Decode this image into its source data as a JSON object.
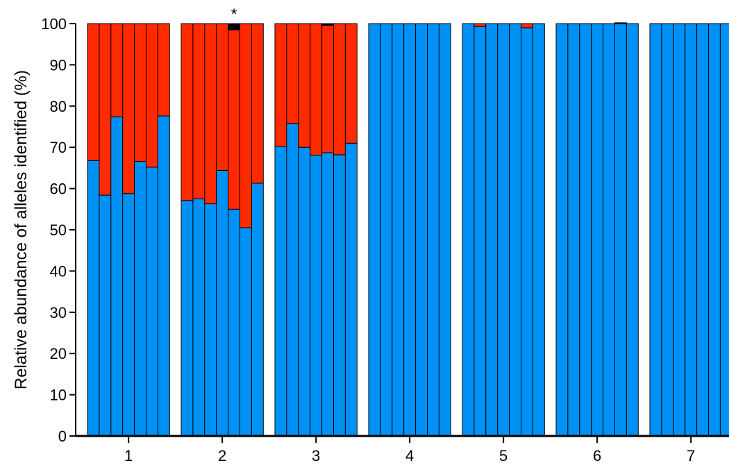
{
  "chart_data": {
    "type": "bar",
    "stacked": true,
    "ylabel": "Relative abundance of alleles identified (%)",
    "xlabel": "",
    "ylim": [
      0,
      100
    ],
    "yticks": [
      0,
      10,
      20,
      30,
      40,
      50,
      60,
      70,
      80,
      90,
      100
    ],
    "grid": false,
    "legend": "none",
    "groups": [
      "1",
      "2",
      "3",
      "4",
      "5",
      "6",
      "7"
    ],
    "series": [
      {
        "color": "#0091F5",
        "values": [
          [
            66.8,
            58.4,
            77.4,
            58.8,
            66.6,
            65.2,
            77.6
          ],
          [
            57.1,
            57.5,
            56.3,
            64.4,
            55.0,
            50.5,
            61.3
          ],
          [
            70.2,
            75.8,
            70.0,
            68.1,
            68.7,
            68.2,
            71.0
          ],
          [
            100,
            100,
            100,
            100,
            100,
            100,
            100
          ],
          [
            100,
            99.3,
            100,
            100,
            100,
            99.0,
            100
          ],
          [
            100,
            100,
            100,
            100,
            100,
            100,
            100
          ],
          [
            100,
            100,
            100,
            100,
            100,
            100,
            100
          ]
        ]
      },
      {
        "color": "#FF2A00",
        "values": [
          [
            33.2,
            41.6,
            22.6,
            41.2,
            33.4,
            34.8,
            22.4
          ],
          [
            42.9,
            42.5,
            43.7,
            35.6,
            43.5,
            49.5,
            38.7
          ],
          [
            29.8,
            24.2,
            30.0,
            31.9,
            30.9,
            31.8,
            29.0
          ],
          [
            0,
            0,
            0,
            0,
            0,
            0,
            0
          ],
          [
            0,
            0.7,
            0,
            0,
            0,
            1.0,
            0
          ],
          [
            0,
            0,
            0,
            0,
            0,
            0,
            0
          ],
          [
            0,
            0,
            0,
            0,
            0,
            0,
            0
          ]
        ]
      },
      {
        "color": "#000000",
        "values": [
          [
            0,
            0,
            0,
            0,
            0,
            0,
            0
          ],
          [
            0,
            0,
            0,
            0,
            1.5,
            0,
            0
          ],
          [
            0,
            0,
            0,
            0,
            0.4,
            0,
            0
          ],
          [
            0,
            0,
            0,
            0,
            0,
            0,
            0
          ],
          [
            0,
            0,
            0,
            0,
            0,
            0,
            0
          ],
          [
            0,
            0,
            0,
            0,
            0,
            0.2,
            0
          ],
          [
            0,
            0,
            0,
            0,
            0,
            0,
            0
          ]
        ]
      }
    ],
    "annotations": [
      {
        "text": "*",
        "group": "2",
        "bar": 5
      }
    ]
  }
}
